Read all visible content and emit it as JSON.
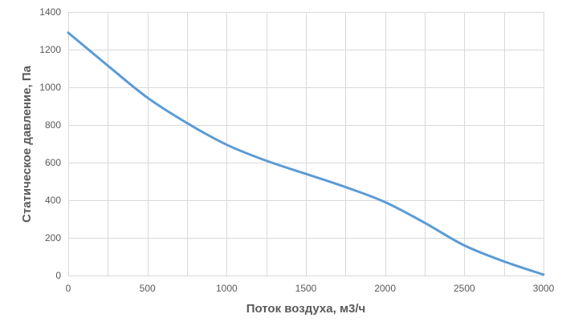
{
  "chart_data": {
    "type": "line",
    "title": "",
    "xlabel": "Поток воздуха, м3/ч",
    "ylabel": "Статическое давление, Па",
    "xlim": [
      0,
      3000
    ],
    "ylim": [
      0,
      1400
    ],
    "x_ticks": [
      0,
      500,
      1000,
      1500,
      2000,
      2500,
      3000
    ],
    "y_ticks": [
      0,
      200,
      400,
      600,
      800,
      1000,
      1200,
      1400
    ],
    "x_minor_grid_step": 250,
    "grid": true,
    "legend": "none",
    "series": [
      {
        "color": "#5b9bd5",
        "x": [
          0,
          250,
          500,
          750,
          1000,
          1250,
          1500,
          1750,
          2000,
          2250,
          2500,
          2750,
          3000
        ],
        "y": [
          1290,
          1115,
          945,
          810,
          695,
          610,
          540,
          470,
          390,
          280,
          160,
          75,
          5
        ]
      }
    ]
  }
}
